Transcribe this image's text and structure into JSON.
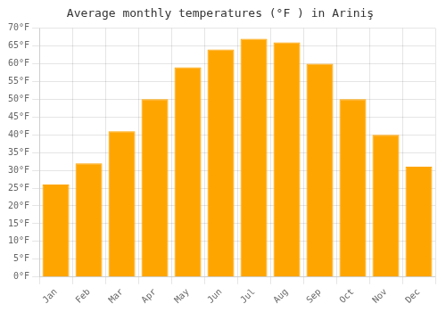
{
  "chart_data": {
    "type": "bar",
    "title": "Average monthly temperatures (°F ) in Ariniş",
    "categories": [
      "Jan",
      "Feb",
      "Mar",
      "Apr",
      "May",
      "Jun",
      "Jul",
      "Aug",
      "Sep",
      "Oct",
      "Nov",
      "Dec"
    ],
    "values": [
      26,
      32,
      41,
      50,
      59,
      64,
      67,
      66,
      60,
      50,
      40,
      31
    ],
    "color": "#FFA500",
    "ylim": [
      0,
      70
    ],
    "yticks": [
      {
        "value": 0,
        "label": "0°F"
      },
      {
        "value": 5,
        "label": "5°F"
      },
      {
        "value": 10,
        "label": "10°F"
      },
      {
        "value": 15,
        "label": "15°F"
      },
      {
        "value": 20,
        "label": "20°F"
      },
      {
        "value": 25,
        "label": "25°F"
      },
      {
        "value": 30,
        "label": "30°F"
      },
      {
        "value": 35,
        "label": "35°F"
      },
      {
        "value": 40,
        "label": "40°F"
      },
      {
        "value": 45,
        "label": "45°F"
      },
      {
        "value": 50,
        "label": "50°F"
      },
      {
        "value": 55,
        "label": "55°F"
      },
      {
        "value": 60,
        "label": "60°F"
      },
      {
        "value": 65,
        "label": "65°F"
      },
      {
        "value": 70,
        "label": "70°F"
      }
    ],
    "grid": true
  }
}
